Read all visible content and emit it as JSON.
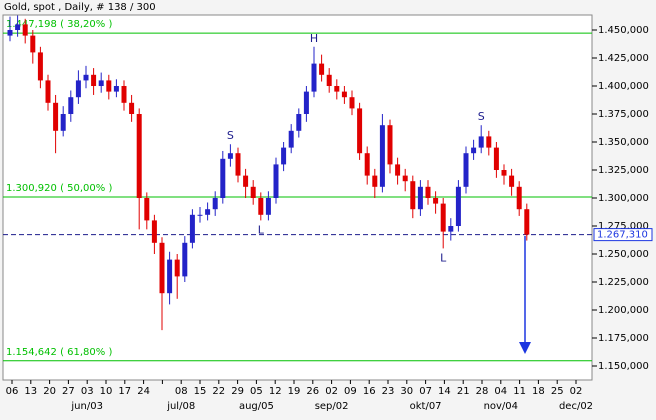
{
  "chart_data": {
    "type": "candlestick",
    "title": "Gold, spot , Daily, # 138 / 300",
    "up_color": "#2323c8",
    "down_color": "#e00000",
    "open": [
      1445,
      1450,
      1455,
      1445,
      1430,
      1405,
      1385,
      1360,
      1375,
      1390,
      1405,
      1410,
      1400,
      1405,
      1395,
      1400,
      1385,
      1375,
      1300,
      1280,
      1260,
      1215,
      1245,
      1230,
      1260,
      1285,
      1285,
      1290,
      1300,
      1335,
      1340,
      1320,
      1310,
      1300,
      1285,
      1300,
      1330,
      1345,
      1360,
      1375,
      1395,
      1420,
      1410,
      1400,
      1395,
      1390,
      1380,
      1340,
      1320,
      1310,
      1365,
      1330,
      1320,
      1315,
      1290,
      1310,
      1300,
      1295,
      1270,
      1275,
      1310,
      1340,
      1345,
      1355,
      1345,
      1325,
      1320,
      1310,
      1290
    ],
    "high": [
      1462,
      1463,
      1460,
      1450,
      1435,
      1410,
      1392,
      1382,
      1396,
      1414,
      1418,
      1416,
      1412,
      1410,
      1406,
      1405,
      1392,
      1380,
      1305,
      1285,
      1265,
      1252,
      1250,
      1266,
      1290,
      1292,
      1296,
      1306,
      1342,
      1348,
      1345,
      1326,
      1316,
      1305,
      1306,
      1336,
      1350,
      1366,
      1380,
      1400,
      1435,
      1428,
      1416,
      1406,
      1400,
      1396,
      1385,
      1346,
      1326,
      1375,
      1370,
      1336,
      1326,
      1320,
      1316,
      1316,
      1306,
      1300,
      1282,
      1316,
      1346,
      1352,
      1365,
      1360,
      1350,
      1330,
      1326,
      1315,
      1295
    ],
    "low": [
      1440,
      1444,
      1438,
      1420,
      1398,
      1378,
      1340,
      1355,
      1368,
      1384,
      1398,
      1392,
      1394,
      1388,
      1390,
      1378,
      1368,
      1272,
      1272,
      1250,
      1182,
      1205,
      1210,
      1225,
      1255,
      1278,
      1280,
      1284,
      1295,
      1328,
      1314,
      1300,
      1294,
      1280,
      1280,
      1295,
      1324,
      1340,
      1354,
      1368,
      1390,
      1404,
      1394,
      1388,
      1384,
      1374,
      1334,
      1312,
      1300,
      1305,
      1322,
      1312,
      1306,
      1282,
      1284,
      1294,
      1286,
      1255,
      1262,
      1270,
      1304,
      1334,
      1340,
      1338,
      1318,
      1312,
      1302,
      1284,
      1262
    ],
    "close": [
      1450,
      1455,
      1445,
      1430,
      1405,
      1385,
      1360,
      1375,
      1390,
      1405,
      1410,
      1400,
      1405,
      1395,
      1400,
      1385,
      1375,
      1300,
      1280,
      1260,
      1215,
      1245,
      1230,
      1260,
      1285,
      1285,
      1290,
      1300,
      1335,
      1340,
      1320,
      1310,
      1300,
      1285,
      1300,
      1330,
      1345,
      1360,
      1375,
      1395,
      1420,
      1410,
      1400,
      1395,
      1390,
      1380,
      1340,
      1320,
      1310,
      1365,
      1330,
      1320,
      1315,
      1290,
      1310,
      1300,
      1295,
      1270,
      1275,
      1310,
      1340,
      1345,
      1355,
      1345,
      1325,
      1320,
      1310,
      1290,
      1267.31
    ],
    "categories": [
      "06",
      "13",
      "20",
      "27",
      "03",
      "10",
      "17",
      "24",
      null,
      "08",
      "15",
      "22",
      "29",
      "05",
      "12",
      "19",
      "26",
      "02",
      "09",
      "16",
      "23",
      "30",
      "07",
      "14",
      "21",
      "28",
      "04",
      "11",
      "18",
      "25",
      "02"
    ],
    "months": [
      {
        "label": "jun/03",
        "tick": 4
      },
      {
        "label": "jul/08",
        "tick": 9
      },
      {
        "label": "aug/05",
        "tick": 13
      },
      {
        "label": "sep/02",
        "tick": 17
      },
      {
        "label": "okt/07",
        "tick": 22
      },
      {
        "label": "nov/04",
        "tick": 26
      },
      {
        "label": "dec/02",
        "tick": 30
      }
    ],
    "ylim": [
      1137.5,
      1463.4
    ],
    "yticks": [
      {
        "value": 1150,
        "label": "1.150,000"
      },
      {
        "value": 1175,
        "label": "1.175,000"
      },
      {
        "value": 1200,
        "label": "1.200,000"
      },
      {
        "value": 1225,
        "label": "1.225,000"
      },
      {
        "value": 1250,
        "label": "1.250,000"
      },
      {
        "value": 1275,
        "label": "1.275,000"
      },
      {
        "value": 1300,
        "label": "1.300,000"
      },
      {
        "value": 1325,
        "label": "1.325,000"
      },
      {
        "value": 1350,
        "label": "1.350,000"
      },
      {
        "value": 1375,
        "label": "1.375,000"
      },
      {
        "value": 1400,
        "label": "1.400,000"
      },
      {
        "value": 1425,
        "label": "1.425,000"
      },
      {
        "value": 1450,
        "label": "1.450,000"
      }
    ],
    "reference_lines": [
      {
        "value": 1447.198,
        "label": "1.447,198 ( 38,20% )"
      },
      {
        "value": 1300.92,
        "label": "1.300,920 ( 50,00% )"
      },
      {
        "value": 1154.642,
        "label": "1.154,642 ( 61,80% )"
      }
    ],
    "reference_color": "#00c000",
    "last_price": {
      "value": 1267.31,
      "label": "1.267,310"
    },
    "annotations": [
      {
        "text": "S",
        "candle": 29,
        "position": "above"
      },
      {
        "text": "L",
        "candle": 33,
        "position": "below"
      },
      {
        "text": "H",
        "candle": 40,
        "position": "above"
      },
      {
        "text": "L",
        "candle": 57,
        "position": "below"
      },
      {
        "text": "S",
        "candle": 62,
        "position": "above"
      }
    ]
  }
}
